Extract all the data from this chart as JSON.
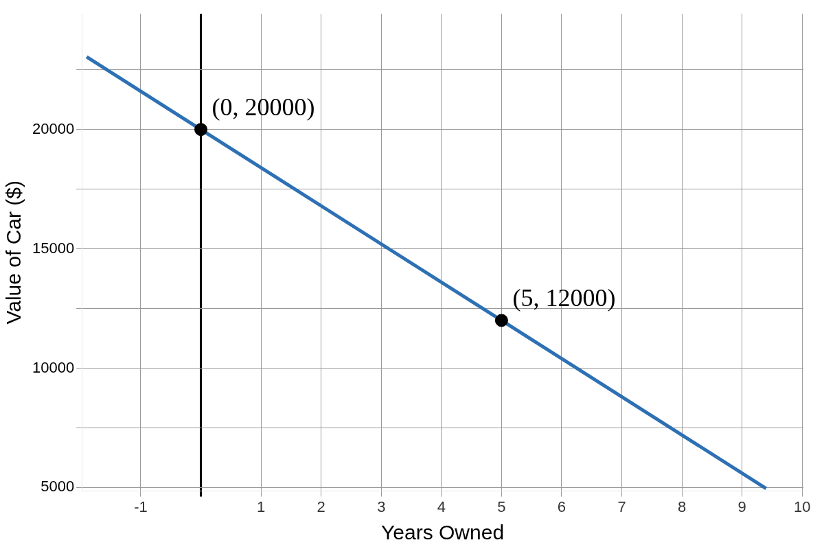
{
  "chart_data": {
    "type": "line",
    "xlabel": "Years Owned",
    "ylabel": "Value of Car ($)",
    "xlim": [
      -1.98,
      10.02
    ],
    "ylim": [
      4850,
      24850
    ],
    "xticks": [
      -1,
      {
        "value": 0,
        "label": null
      },
      1,
      2,
      3,
      4,
      5,
      6,
      7,
      8,
      9,
      10
    ],
    "yticks": [
      5000,
      {
        "value": 7500,
        "label": null
      },
      10000,
      {
        "value": 12500,
        "label": null
      },
      15000,
      {
        "value": 17500,
        "label": null
      },
      20000,
      {
        "value": 22500,
        "label": null
      }
    ],
    "grid": true,
    "series": [
      {
        "type": "line",
        "color": "#2d70b3",
        "x": [
          -1.9,
          9.4
        ],
        "values": [
          23040,
          4960
        ],
        "marker": "none"
      },
      {
        "type": "scatter",
        "color": "#000000",
        "x": [
          0,
          5
        ],
        "values": [
          20000,
          12000
        ],
        "marker": "circle"
      }
    ],
    "annotations": [
      {
        "text": "(0, 20000)",
        "x": 0,
        "y": 20000
      },
      {
        "text": "(5, 12000)",
        "x": 5,
        "y": 12000
      }
    ]
  }
}
